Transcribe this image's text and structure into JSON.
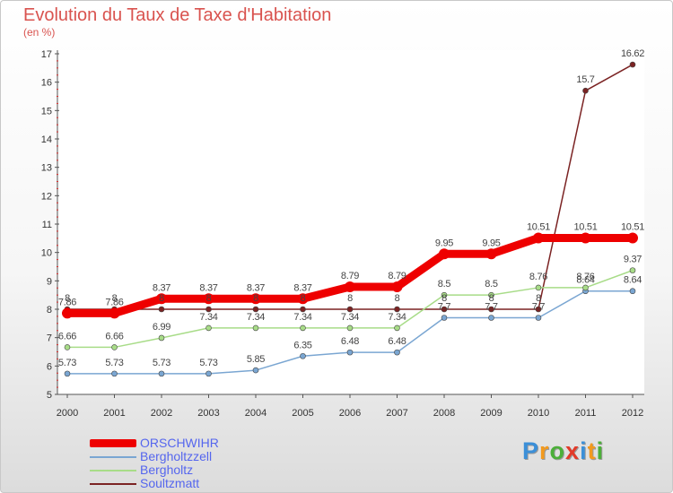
{
  "chart_data": {
    "type": "line",
    "title": "Evolution du Taux de Taxe d'Habitation",
    "unit_label": "(en %)",
    "x": [
      "2000",
      "2001",
      "2002",
      "2003",
      "2004",
      "2005",
      "2006",
      "2007",
      "2008",
      "2009",
      "2010",
      "2011",
      "2012"
    ],
    "ylim": [
      5,
      17
    ],
    "yticks": [
      "5",
      "6",
      "7",
      "8",
      "9",
      "10",
      "11",
      "12",
      "13",
      "14",
      "15",
      "16",
      "17"
    ],
    "series": [
      {
        "name": "ORSCHWIHR",
        "color": "#ee0000",
        "values": [
          7.86,
          7.86,
          8.37,
          8.37,
          8.37,
          8.37,
          8.79,
          8.79,
          9.95,
          9.95,
          10.51,
          10.51,
          10.51
        ],
        "labels": [
          "7.86",
          "7.86",
          "8.37",
          "8.37",
          "8.37",
          "8.37",
          "8.79",
          "8.79",
          "9.95",
          "9.95",
          "10.51",
          "10.51",
          "10.51"
        ]
      },
      {
        "name": "Bergholtzzell",
        "color": "#7aa6d2",
        "values": [
          5.73,
          5.73,
          5.73,
          5.73,
          5.85,
          6.35,
          6.48,
          6.48,
          7.7,
          7.7,
          7.7,
          8.64,
          8.64
        ],
        "labels": [
          "5.73",
          "5.73",
          "5.73",
          "5.73",
          "5.85",
          "6.35",
          "6.48",
          "6.48",
          "7.7",
          "7.7",
          "7.7",
          "8.64",
          "8.64"
        ]
      },
      {
        "name": "Bergholtz",
        "color": "#a8dc88",
        "values": [
          6.66,
          6.66,
          6.99,
          7.34,
          7.34,
          7.34,
          7.34,
          7.34,
          8.5,
          8.5,
          8.76,
          8.76,
          9.37
        ],
        "labels": [
          "6.66",
          "6.66",
          "6.99",
          "7.34",
          "7.34",
          "7.34",
          "7.34",
          "7.34",
          "8.5",
          "8.5",
          "8.76",
          "8.76",
          "9.37"
        ]
      },
      {
        "name": "Soultzmatt",
        "color": "#7b2323",
        "values": [
          8,
          8,
          8,
          8,
          8,
          8,
          8,
          8,
          8,
          8,
          8,
          15.7,
          16.62
        ],
        "labels": [
          "8",
          "8",
          "8",
          "8",
          "8",
          "8",
          "8",
          "8",
          "8",
          "8",
          "8",
          "15.7",
          "16.62"
        ]
      }
    ]
  },
  "brand": {
    "letters": [
      "P",
      "r",
      "o",
      "x",
      "i",
      "t",
      "i"
    ],
    "colors": [
      "#3b8fd8",
      "#f39a1e",
      "#4caf3a",
      "#e23b2a",
      "#3b8fd8",
      "#f39a1e",
      "#4caf3a"
    ]
  }
}
